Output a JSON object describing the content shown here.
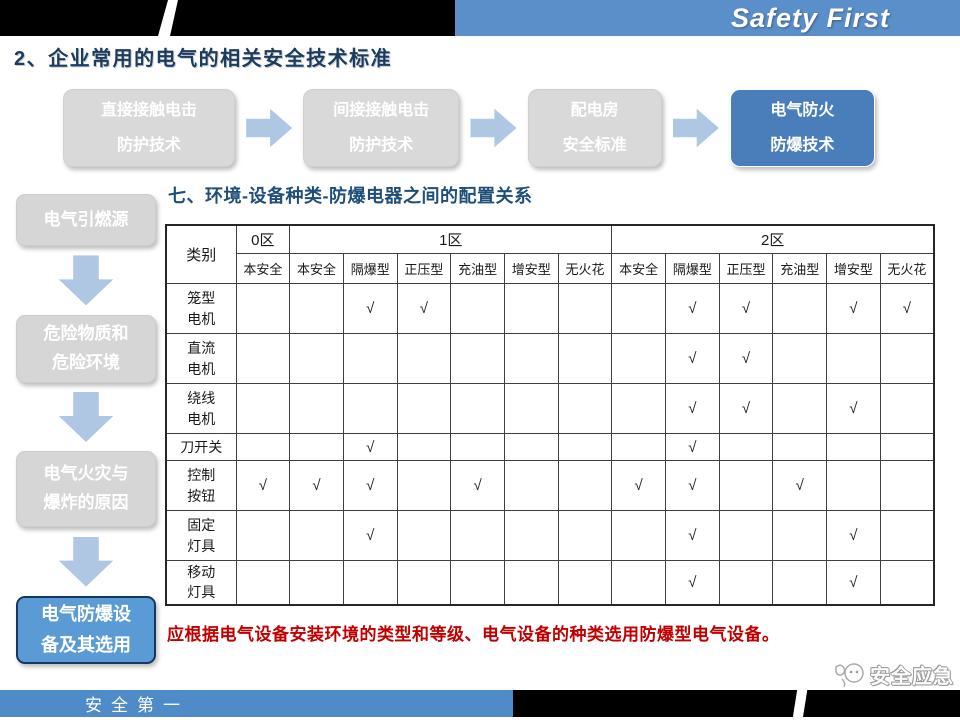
{
  "top_bar": {
    "brand": "Safety First"
  },
  "page": {
    "title": "2、企业常用的电气的相关安全技术标准"
  },
  "flow_steps": [
    {
      "label": "直接接触电击\n防护技术"
    },
    {
      "label": "间接接触电击\n防护技术"
    },
    {
      "label": "配电房\n安全标准"
    },
    {
      "label": "电气防火\n防爆技术"
    }
  ],
  "sidebar_steps": [
    {
      "label": "电气引燃源"
    },
    {
      "label": "危险物质和\n危险环境"
    },
    {
      "label": "电气火灾与\n爆炸的原因"
    },
    {
      "label": "电气防爆设\n备及其选用"
    }
  ],
  "section": {
    "title": "七、环境-设备种类-防爆电器之间的配置关系"
  },
  "table": {
    "corner_label": "类别",
    "zone_groups": [
      {
        "label": "0区",
        "span": 1
      },
      {
        "label": "1区",
        "span": 6
      },
      {
        "label": "2区",
        "span": 6
      }
    ],
    "sub_headers": [
      "本安全",
      "本安全",
      "隔爆型",
      "正压型",
      "充油型",
      "增安型",
      "无火花",
      "本安全",
      "隔爆型",
      "正压型",
      "充油型",
      "增安型",
      "无火花"
    ],
    "check_mark": "√",
    "rows": [
      {
        "label": "笼型\n电机",
        "checks": [
          0,
          0,
          1,
          1,
          0,
          0,
          0,
          0,
          1,
          1,
          0,
          1,
          1
        ]
      },
      {
        "label": "直流\n电机",
        "checks": [
          0,
          0,
          0,
          0,
          0,
          0,
          0,
          0,
          1,
          1,
          0,
          0,
          0
        ]
      },
      {
        "label": "绕线\n电机",
        "checks": [
          0,
          0,
          0,
          0,
          0,
          0,
          0,
          0,
          1,
          1,
          0,
          1,
          0
        ]
      },
      {
        "label": "刀开关",
        "checks": [
          0,
          0,
          1,
          0,
          0,
          0,
          0,
          0,
          1,
          0,
          0,
          0,
          0
        ]
      },
      {
        "label": "控制\n按钮",
        "checks": [
          1,
          1,
          1,
          0,
          1,
          0,
          0,
          1,
          1,
          0,
          1,
          0,
          0
        ]
      },
      {
        "label": "固定\n灯具",
        "checks": [
          0,
          0,
          1,
          0,
          0,
          0,
          0,
          0,
          1,
          0,
          0,
          1,
          0
        ]
      },
      {
        "label": "移动\n灯具",
        "checks": [
          0,
          0,
          0,
          0,
          0,
          0,
          0,
          0,
          1,
          0,
          0,
          1,
          0
        ]
      }
    ]
  },
  "note": {
    "text": "应根据电气设备安装环境的类型和等级、电气设备的种类选用防爆型电气设备。"
  },
  "footer": {
    "slogan": "安全第一",
    "logo_text": "安全应急"
  },
  "colors": {
    "accent_blue": "#5B8FC9",
    "box_blue": "#4A7EBB",
    "sidebar_blue": "#5B9BD5",
    "title_navy": "#1C3C5E",
    "section_blue": "#1F4E79",
    "note_red": "#C00000",
    "arrow_blue": "#AFC7E3",
    "box_gray": "#D9D9D9"
  }
}
